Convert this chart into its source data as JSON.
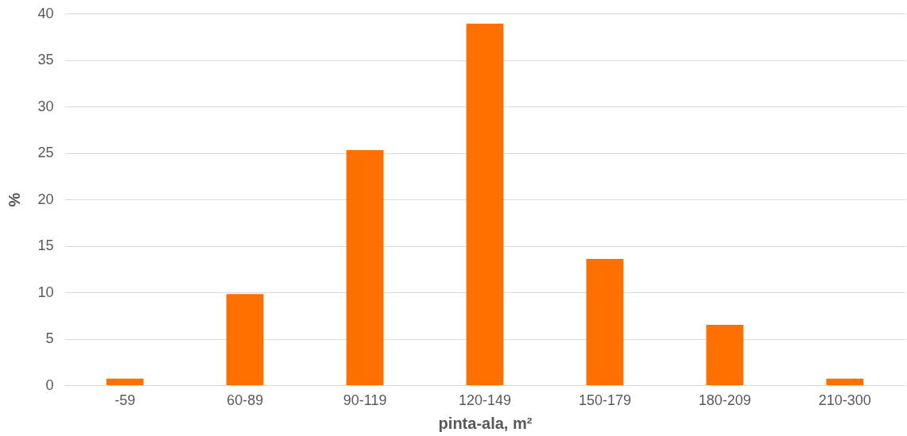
{
  "chart_data": {
    "type": "bar",
    "xlabel": "pinta-ala, m²",
    "ylabel": "%",
    "categories": [
      "-59",
      "60-89",
      "90-119",
      "120-149",
      "150-179",
      "180-209",
      "210-300"
    ],
    "values": [
      0.7,
      9.8,
      25.3,
      38.9,
      13.6,
      6.5,
      0.7
    ],
    "color": "#ff7000",
    "ylim": [
      0,
      40
    ],
    "yticks": [
      0,
      5,
      10,
      15,
      20,
      25,
      30,
      35,
      40
    ],
    "grid": "y"
  }
}
